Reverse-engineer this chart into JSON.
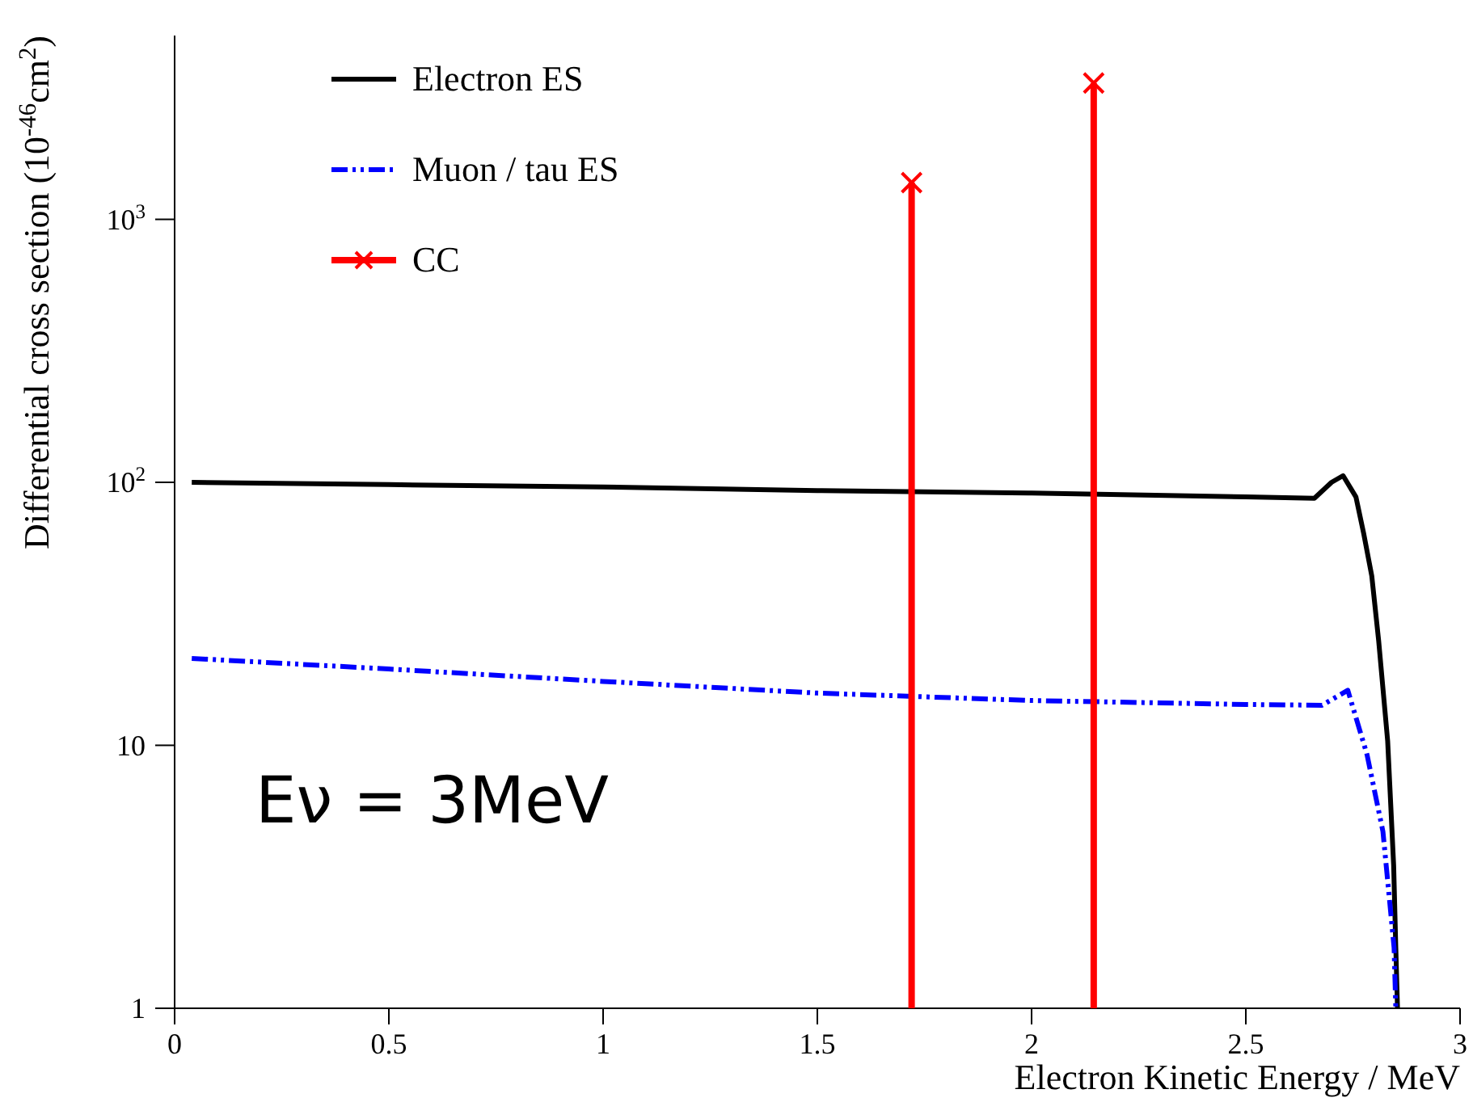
{
  "chart_data": {
    "type": "line",
    "xlabel": "Electron Kinetic Energy / MeV",
    "ylabel": "Differential cross section (10$^{-46}$cm$^{2}$)",
    "xlim": [
      0,
      3
    ],
    "xticks": [
      0,
      0.5,
      1,
      1.5,
      2,
      2.5,
      3
    ],
    "ylim": [
      1,
      5000
    ],
    "yticks": [
      1,
      10,
      {
        "value": 100,
        "label": "10$^{2}$"
      },
      {
        "value": 1000,
        "label": "10$^{3}$"
      }
    ],
    "log": "y",
    "legend": "top left",
    "annotations": [
      "Eν = 3MeV"
    ],
    "series": [
      {
        "name": "Electron ES",
        "color": "#000000",
        "line_style": "solid",
        "x": [
          0.04,
          0.5,
          1,
          1.5,
          2,
          2.5,
          2.66,
          2.7,
          2.727,
          2.757,
          2.775,
          2.794,
          2.81,
          2.831,
          2.845,
          2.85,
          2.854
        ],
        "values": [
          100,
          98,
          96,
          93,
          91,
          88,
          87,
          100,
          106,
          88,
          64,
          44,
          25,
          10.4,
          3.5,
          1.7,
          1
        ]
      },
      {
        "name": "Muon / tau ES",
        "color": "#0000ff",
        "line_style": "dashed",
        "x": [
          0.04,
          0.5,
          1,
          1.5,
          2,
          2.5,
          2.678,
          2.738,
          2.783,
          2.82,
          2.846,
          2.85
        ],
        "values": [
          21.4,
          19.5,
          17.5,
          15.8,
          14.8,
          14.3,
          14.2,
          16.2,
          9.2,
          4.7,
          1.7,
          1
        ]
      },
      {
        "name": "CC",
        "color": "#ff0000",
        "type": "lollipop",
        "marker": "cross",
        "x": [
          1.72,
          2.145
        ],
        "values": [
          1380,
          3300
        ]
      }
    ]
  }
}
